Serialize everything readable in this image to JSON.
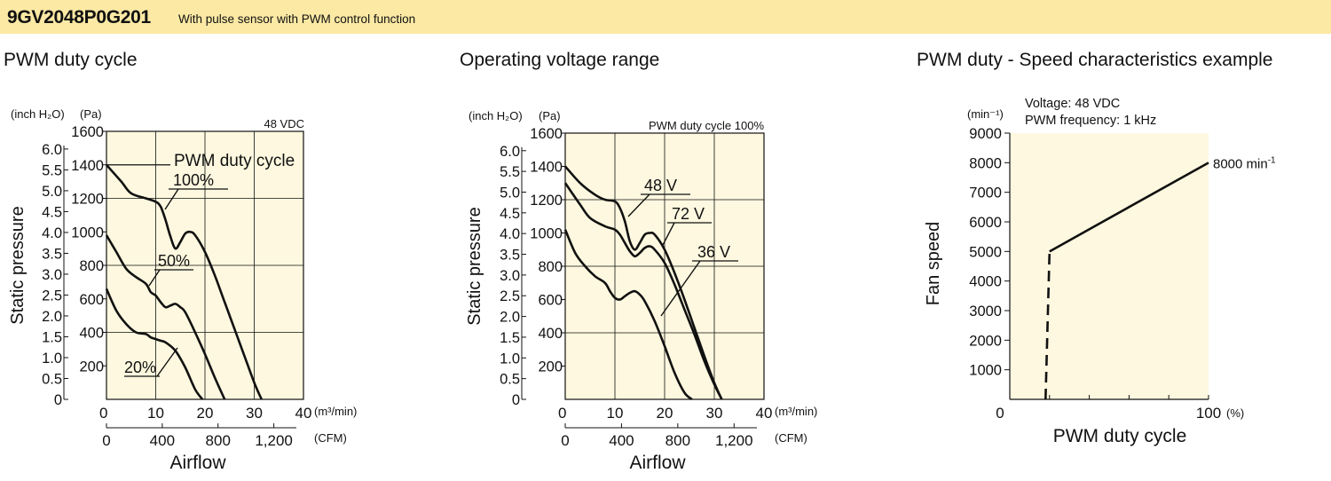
{
  "header": {
    "model": "9GV2048P0G201",
    "description": "With pulse sensor with PWM control function",
    "background": "#fbe9a4"
  },
  "colors": {
    "plot_bg": "#fdf8df",
    "line": "#111111",
    "grid": "#111111"
  },
  "chart_data": [
    {
      "type": "line",
      "title": "PWM duty cycle",
      "note": "48 VDC",
      "ylabel": "Static pressure",
      "xlabel": "Airflow",
      "x_unit": "(m³/min)",
      "x2_unit": "(CFM)",
      "y_unit_inch": "(inch H₂O)",
      "y_unit_pa": "(Pa)",
      "xlim": [
        0,
        40
      ],
      "ylim": [
        0,
        1600
      ],
      "x_ticks": [
        "0",
        "10",
        "20",
        "30",
        "40"
      ],
      "x2_ticks": [
        {
          "v": 0,
          "label": "0"
        },
        {
          "v": 400,
          "label": "400"
        },
        {
          "v": 800,
          "label": "800"
        },
        {
          "v": 1200,
          "label": "1,200"
        }
      ],
      "y_ticks_pa": [
        "200",
        "400",
        "600",
        "800",
        "1000",
        "1200",
        "1400",
        "1600"
      ],
      "y_ticks_inch": [
        "0",
        "0.5",
        "1.0",
        "1.5",
        "2.0",
        "2.5",
        "3.0",
        "3.5",
        "4.0",
        "4.5",
        "5.0",
        "5.5",
        "6.0"
      ],
      "legend_title": "PWM duty cycle",
      "series": [
        {
          "name": "100%",
          "x": [
            0,
            3,
            5,
            8,
            10,
            11,
            12,
            13,
            14,
            15,
            16,
            17,
            18,
            20,
            22,
            24,
            26,
            28,
            30,
            31.5
          ],
          "y": [
            1400,
            1300,
            1230,
            1200,
            1180,
            1150,
            1070,
            970,
            900,
            940,
            990,
            1000,
            980,
            880,
            740,
            580,
            420,
            260,
            100,
            0
          ]
        },
        {
          "name": "50%",
          "x": [
            0,
            2,
            4,
            6,
            8,
            9,
            10,
            11,
            12,
            13,
            14,
            15,
            16,
            18,
            20,
            22,
            24
          ],
          "y": [
            980,
            880,
            780,
            730,
            690,
            640,
            620,
            580,
            550,
            560,
            570,
            550,
            520,
            400,
            270,
            130,
            0
          ]
        },
        {
          "name": "20%",
          "x": [
            0,
            2,
            4,
            6,
            8,
            9,
            10,
            11,
            12,
            14,
            16,
            18,
            19.5
          ],
          "y": [
            660,
            530,
            450,
            400,
            390,
            370,
            360,
            350,
            340,
            290,
            190,
            60,
            0
          ]
        }
      ]
    },
    {
      "type": "line",
      "title": "Operating voltage range",
      "note": "PWM duty cycle 100%",
      "ylabel": "Static pressure",
      "xlabel": "Airflow",
      "x_unit": "(m³/min)",
      "x2_unit": "(CFM)",
      "y_unit_inch": "(inch H₂O)",
      "y_unit_pa": "(Pa)",
      "xlim": [
        0,
        40
      ],
      "ylim": [
        0,
        1600
      ],
      "x_ticks": [
        "0",
        "10",
        "20",
        "30",
        "40"
      ],
      "x2_ticks": [
        {
          "v": 0,
          "label": "0"
        },
        {
          "v": 400,
          "label": "400"
        },
        {
          "v": 800,
          "label": "800"
        },
        {
          "v": 1200,
          "label": "1,200"
        }
      ],
      "y_ticks_pa": [
        "200",
        "400",
        "600",
        "800",
        "1000",
        "1200",
        "1400",
        "1600"
      ],
      "y_ticks_inch": [
        "0",
        "0.5",
        "1.0",
        "1.5",
        "2.0",
        "2.5",
        "3.0",
        "3.5",
        "4.0",
        "4.5",
        "5.0",
        "5.5",
        "6.0"
      ],
      "series": [
        {
          "name": "48 V",
          "x": [
            0,
            3,
            6,
            8,
            10,
            11,
            12,
            13,
            14,
            15,
            16,
            17,
            18,
            20,
            22,
            24,
            26,
            28,
            30,
            31.5
          ],
          "y": [
            1400,
            1300,
            1230,
            1200,
            1190,
            1150,
            1070,
            950,
            900,
            940,
            990,
            1000,
            990,
            900,
            760,
            600,
            430,
            260,
            100,
            0
          ]
        },
        {
          "name": "72 V",
          "x": [
            0,
            3,
            5,
            8,
            10,
            11,
            12,
            13,
            14,
            15,
            16,
            17,
            18,
            20,
            22,
            24,
            26,
            28,
            30,
            31.5
          ],
          "y": [
            1300,
            1170,
            1090,
            1040,
            1020,
            990,
            940,
            890,
            860,
            880,
            910,
            920,
            900,
            820,
            690,
            540,
            390,
            230,
            90,
            0
          ]
        },
        {
          "name": "36 V",
          "x": [
            0,
            2,
            4,
            6,
            8,
            9,
            10,
            11,
            12,
            13,
            14,
            15,
            16,
            18,
            20,
            22,
            24,
            25.5
          ],
          "y": [
            1020,
            880,
            800,
            740,
            700,
            650,
            610,
            600,
            620,
            640,
            650,
            630,
            590,
            470,
            320,
            160,
            40,
            0
          ]
        }
      ]
    },
    {
      "type": "line",
      "title": "PWM duty - Speed characteristics example",
      "notes": [
        "Voltage: 48 VDC",
        "PWM frequency: 1 kHz"
      ],
      "ylabel": "Fan speed",
      "xlabel": "PWM duty cycle",
      "y_unit": "(min⁻¹)",
      "x_unit": "(%)",
      "xlim": [
        0,
        100
      ],
      "ylim": [
        0,
        9000
      ],
      "x_ticks": [
        "0",
        "100"
      ],
      "y_ticks": [
        "1000",
        "2000",
        "3000",
        "4000",
        "5000",
        "6000",
        "7000",
        "8000",
        "9000"
      ],
      "end_label": "8000 min",
      "end_label_sup": "-1",
      "series": [
        {
          "name": "",
          "style": "dashed",
          "x": [
            18,
            20
          ],
          "y": [
            0,
            5000
          ]
        },
        {
          "name": "",
          "style": "solid",
          "x": [
            20,
            100
          ],
          "y": [
            5000,
            8000
          ]
        }
      ]
    }
  ]
}
